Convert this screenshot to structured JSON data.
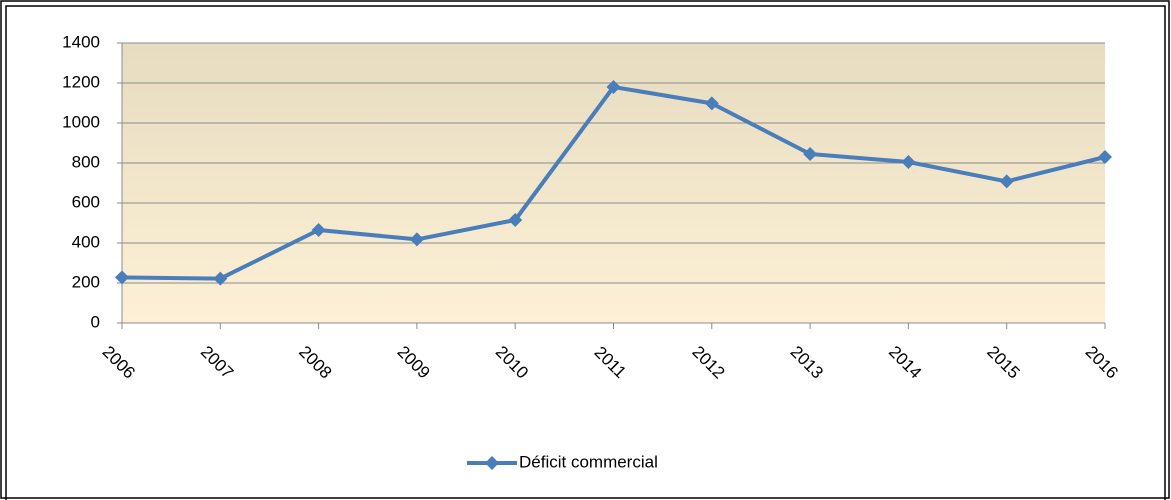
{
  "chart_data": {
    "type": "line",
    "categories": [
      "2006",
      "2007",
      "2008",
      "2009",
      "2010",
      "2011",
      "2012",
      "2013",
      "2014",
      "2015",
      "2016"
    ],
    "series": [
      {
        "name": "Déficit commercial",
        "color": "#4a7ebb",
        "values": [
          228,
          222,
          465,
          418,
          515,
          1180,
          1098,
          845,
          805,
          708,
          830
        ]
      }
    ],
    "ylim": [
      0,
      1400
    ],
    "yticks": [
      0,
      200,
      400,
      600,
      800,
      1000,
      1200,
      1400
    ],
    "grid": true,
    "legend": "bottom"
  }
}
